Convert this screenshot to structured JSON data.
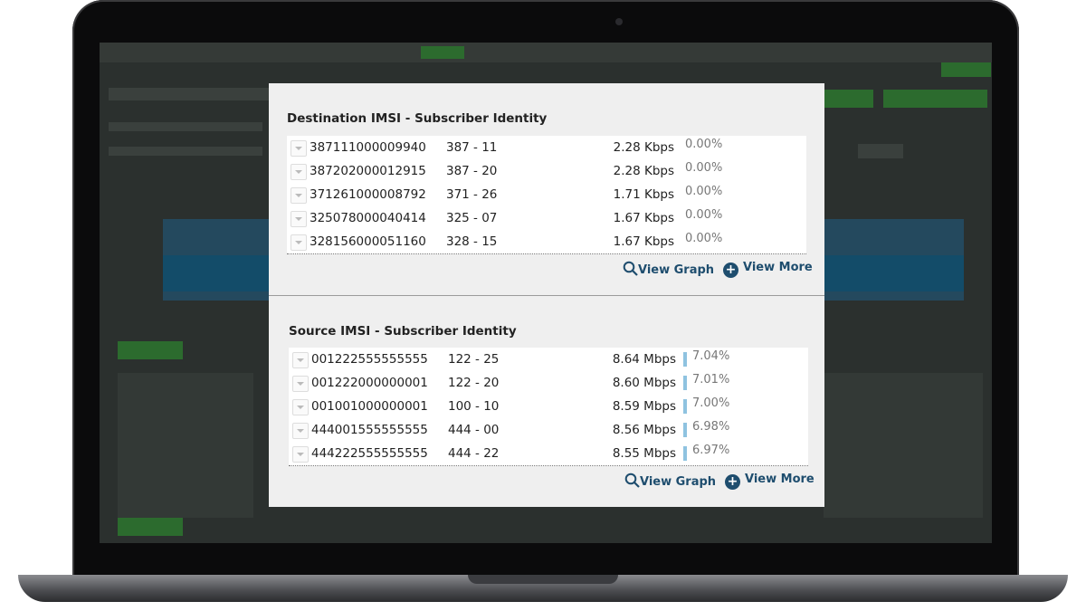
{
  "colors": {
    "accent": "#1e4d6e",
    "pct_bar": "#8fc3e0"
  },
  "destination": {
    "title": "Destination IMSI - Subscriber Identity",
    "rows": [
      {
        "imsi": "387111000009940",
        "mcc_mnc": "387 - 11",
        "rate": "2.28 Kbps",
        "pct": "0.00%",
        "pct_value": 0.0
      },
      {
        "imsi": "387202000012915",
        "mcc_mnc": "387 - 20",
        "rate": "2.28 Kbps",
        "pct": "0.00%",
        "pct_value": 0.0
      },
      {
        "imsi": "371261000008792",
        "mcc_mnc": "371 - 26",
        "rate": "1.71 Kbps",
        "pct": "0.00%",
        "pct_value": 0.0
      },
      {
        "imsi": "325078000040414",
        "mcc_mnc": "325 - 07",
        "rate": "1.67 Kbps",
        "pct": "0.00%",
        "pct_value": 0.0
      },
      {
        "imsi": "328156000051160",
        "mcc_mnc": "328 - 15",
        "rate": "1.67 Kbps",
        "pct": "0.00%",
        "pct_value": 0.0
      }
    ],
    "view_graph": "View Graph",
    "view_more": "View More"
  },
  "source": {
    "title": "Source IMSI - Subscriber Identity",
    "rows": [
      {
        "imsi": "001222555555555",
        "mcc_mnc": "122 - 25",
        "rate": "8.64 Mbps",
        "pct": "7.04%",
        "pct_value": 7.04
      },
      {
        "imsi": "001222000000001",
        "mcc_mnc": "122 - 20",
        "rate": "8.60 Mbps",
        "pct": "7.01%",
        "pct_value": 7.01
      },
      {
        "imsi": "001001000000001",
        "mcc_mnc": "100 - 10",
        "rate": "8.59 Mbps",
        "pct": "7.00%",
        "pct_value": 7.0
      },
      {
        "imsi": "444001555555555",
        "mcc_mnc": "444 - 00",
        "rate": "8.56 Mbps",
        "pct": "6.98%",
        "pct_value": 6.98
      },
      {
        "imsi": "444222555555555",
        "mcc_mnc": "444 - 22",
        "rate": "8.55 Mbps",
        "pct": "6.97%",
        "pct_value": 6.97
      }
    ],
    "view_graph": "View Graph",
    "view_more": "View More"
  }
}
